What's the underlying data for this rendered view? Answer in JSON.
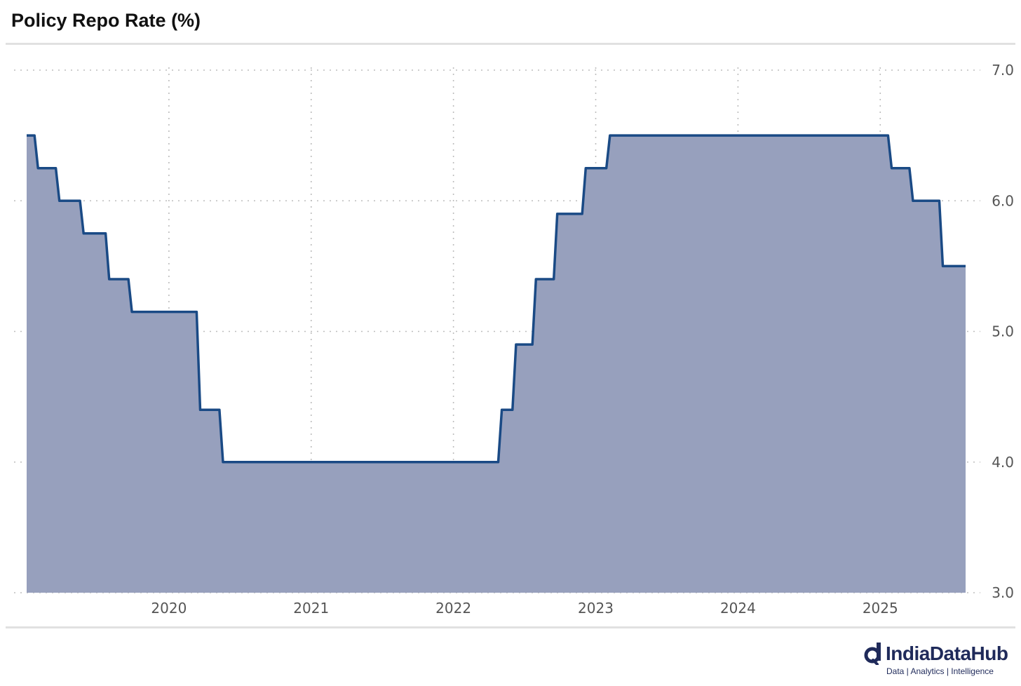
{
  "title": "Policy Repo Rate (%)",
  "brand": {
    "name": "IndiaDataHub",
    "tagline": "Data | Analytics | Intelligence"
  },
  "colors": {
    "line": "#1a4a85",
    "fill": "#97a0bd",
    "grid": "#bdbdbd",
    "rule": "#e1e1e1",
    "brand": "#1f2a5a"
  },
  "chart_data": {
    "type": "area",
    "title": "Policy Repo Rate (%)",
    "xlabel": "",
    "ylabel": "",
    "step": true,
    "grid": true,
    "y_axis_side": "right",
    "ylim": [
      3.0,
      7.0
    ],
    "yticks": [
      3.0,
      4.0,
      5.0,
      6.0,
      7.0
    ],
    "ytick_labels": [
      "3.0",
      "4.0",
      "5.0",
      "6.0",
      "7.0"
    ],
    "xlim": [
      2019.0,
      2025.6
    ],
    "xticks": [
      2020,
      2021,
      2022,
      2023,
      2024,
      2025
    ],
    "xtick_labels": [
      "2020",
      "2021",
      "2022",
      "2023",
      "2024",
      "2025"
    ],
    "series": [
      {
        "x": [
          2019.0,
          2019.08,
          2019.23,
          2019.4,
          2019.58,
          2019.74,
          2020.22,
          2020.38,
          2022.34,
          2022.44,
          2022.58,
          2022.73,
          2022.93,
          2023.1,
          2025.08,
          2025.23,
          2025.44,
          2025.6
        ],
        "y": [
          6.5,
          6.25,
          6.0,
          5.75,
          5.4,
          5.15,
          4.4,
          4.0,
          4.4,
          4.9,
          5.4,
          5.9,
          6.25,
          6.5,
          6.25,
          6.0,
          5.5,
          5.5
        ]
      }
    ]
  }
}
